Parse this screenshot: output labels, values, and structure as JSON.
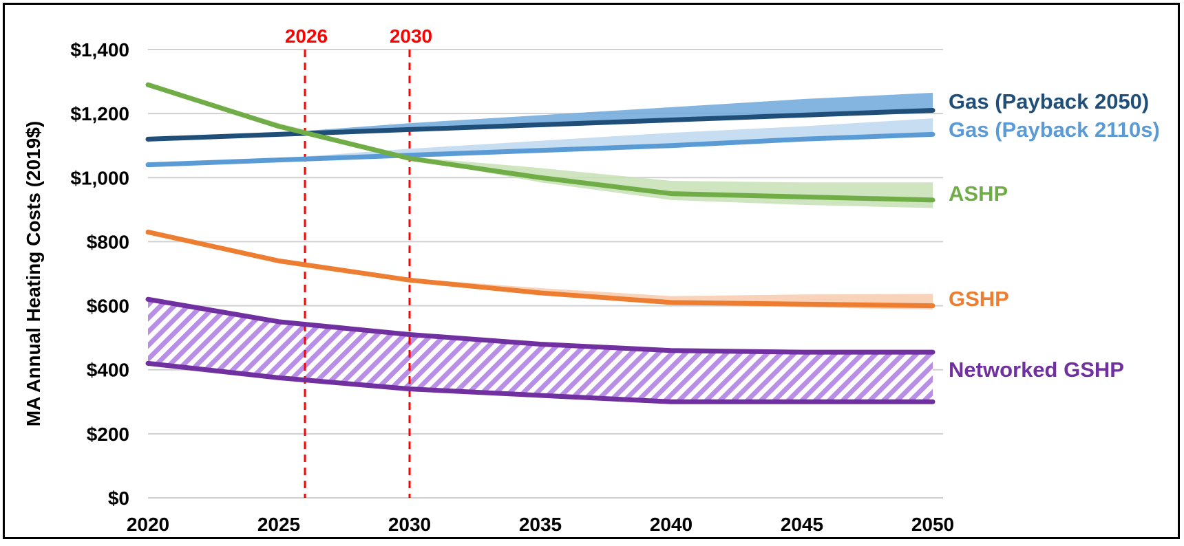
{
  "chart_data": {
    "type": "line",
    "title": "",
    "ylabel": "MA  Annual Heating Costs (2019$)",
    "xlabel": "",
    "xlim": [
      2020,
      2050
    ],
    "ylim": [
      0,
      1400
    ],
    "x_ticks": [
      "2020",
      "2025",
      "2030",
      "2035",
      "2040",
      "2045",
      "2050"
    ],
    "y_ticks": [
      "$0",
      "$200",
      "$400",
      "$600",
      "$800",
      "$1,000",
      "$1,200",
      "$1,400"
    ],
    "y_tick_values": [
      0,
      200,
      400,
      600,
      800,
      1000,
      1200,
      1400
    ],
    "grid": true,
    "markers": [
      {
        "label": "2026",
        "x": 2026,
        "color": "#ff0000"
      },
      {
        "label": "2030",
        "x": 2030,
        "color": "#ff0000"
      }
    ],
    "x": [
      2020,
      2025,
      2030,
      2035,
      2040,
      2045,
      2050
    ],
    "series": [
      {
        "name": "Gas (Payback 2050)",
        "color": "#1f4e79",
        "band_color": "#6fa8dc",
        "values": [
          1120,
          1135,
          1150,
          1165,
          1180,
          1195,
          1210
        ],
        "band_low": [
          1120,
          1135,
          1150,
          1165,
          1180,
          1195,
          1210
        ],
        "band_high": [
          1120,
          1140,
          1170,
          1195,
          1220,
          1245,
          1265
        ]
      },
      {
        "name": "Gas (Payback 2110s)",
        "color": "#5b9bd5",
        "band_color": "#bdd7ee",
        "values": [
          1040,
          1055,
          1070,
          1085,
          1100,
          1120,
          1135
        ],
        "band_low": [
          1040,
          1055,
          1070,
          1085,
          1100,
          1120,
          1135
        ],
        "band_high": [
          1040,
          1060,
          1090,
          1115,
          1140,
          1160,
          1185
        ]
      },
      {
        "name": "ASHP",
        "color": "#70ad47",
        "band_color": "#c5e0b4",
        "values": [
          1290,
          1160,
          1060,
          1000,
          950,
          940,
          930
        ],
        "band_low": [
          1290,
          1160,
          1060,
          985,
          930,
          915,
          905
        ],
        "band_high": [
          1290,
          1170,
          1065,
          1030,
          990,
          985,
          985
        ]
      },
      {
        "name": "GSHP",
        "color": "#ed7d31",
        "band_color": "#f8cbad",
        "values": [
          830,
          740,
          680,
          640,
          610,
          605,
          600
        ],
        "band_low": [
          830,
          740,
          680,
          640,
          605,
          595,
          588
        ],
        "band_high": [
          830,
          745,
          685,
          655,
          630,
          635,
          637
        ]
      },
      {
        "name": "Networked GSHP",
        "color": "#7030a0",
        "band_color": "#d9c2f0",
        "values": [
          620,
          550,
          510,
          480,
          460,
          455,
          455
        ],
        "low_values": [
          420,
          375,
          340,
          320,
          300,
          300,
          300
        ]
      }
    ]
  }
}
